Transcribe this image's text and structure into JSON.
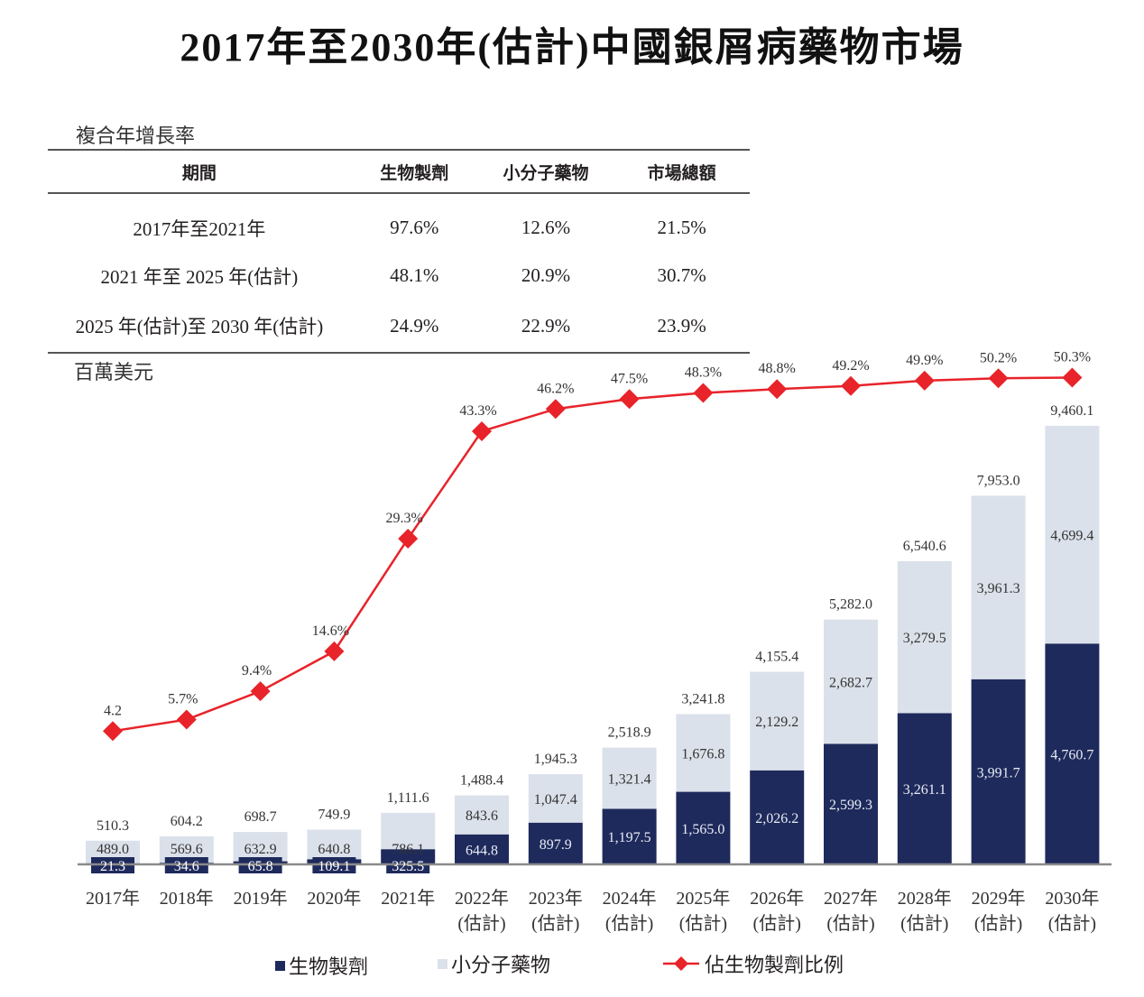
{
  "title": "2017年至2030年(估計)中國銀屑病藥物市場",
  "cagr_table": {
    "caption": "複合年增長率",
    "headers": [
      "期間",
      "生物製劑",
      "小分子藥物",
      "市場總額"
    ],
    "rows": [
      [
        "2017年至2021年",
        "97.6%",
        "12.6%",
        "21.5%"
      ],
      [
        "2021 年至 2025 年(估計)",
        "48.1%",
        "20.9%",
        "30.7%"
      ],
      [
        "2025 年(估計)至 2030 年(估計)",
        "24.9%",
        "22.9%",
        "23.9%"
      ]
    ]
  },
  "colors": {
    "biologics": "#1f2a5c",
    "small_molecule": "#dbe1ea",
    "share_line": "#e8232a",
    "axis": "#8a8a8a"
  },
  "chart_data": {
    "type": "bar",
    "stacked": true,
    "title": "2017年至2030年(估計)中國銀屑病藥物市場",
    "ylabel": "百萬美元",
    "xlabel": "",
    "categories": [
      [
        "2017年",
        ""
      ],
      [
        "2018年",
        ""
      ],
      [
        "2019年",
        ""
      ],
      [
        "2020年",
        ""
      ],
      [
        "2021年",
        ""
      ],
      [
        "2022年",
        "(估計)"
      ],
      [
        "2023年",
        "(估計)"
      ],
      [
        "2024年",
        "(估計)"
      ],
      [
        "2025年",
        "(估計)"
      ],
      [
        "2026年",
        "(估計)"
      ],
      [
        "2027年",
        "(估計)"
      ],
      [
        "2028年",
        "(估計)"
      ],
      [
        "2029年",
        "(估計)"
      ],
      [
        "2030年",
        "(估計)"
      ]
    ],
    "series": [
      {
        "name": "生物製劑",
        "type": "bar",
        "values": [
          21.3,
          34.6,
          65.8,
          109.1,
          325.5,
          644.8,
          897.9,
          1197.5,
          1565.0,
          2026.2,
          2599.3,
          3261.1,
          3991.7,
          4760.7
        ],
        "labels": [
          "21.3",
          "34.6",
          "65.8",
          "109.1",
          "325.5",
          "644.8",
          "897.9",
          "1,197.5",
          "1,565.0",
          "2,026.2",
          "2,599.3",
          "3,261.1",
          "3,991.7",
          "4,760.7"
        ]
      },
      {
        "name": "小分子藥物",
        "type": "bar",
        "values": [
          489.0,
          569.6,
          632.9,
          640.8,
          786.1,
          843.6,
          1047.4,
          1321.4,
          1676.8,
          2129.2,
          2682.7,
          3279.5,
          3961.3,
          4699.4
        ],
        "labels": [
          "489.0",
          "569.6",
          "632.9",
          "640.8",
          "786.1",
          "843.6",
          "1,047.4",
          "1,321.4",
          "1,676.8",
          "2,129.2",
          "2,682.7",
          "3,279.5",
          "3,961.3",
          "4,699.4"
        ]
      },
      {
        "name": "佔生物製劑比例",
        "type": "line",
        "unit": "%",
        "values": [
          4.2,
          5.7,
          9.4,
          14.6,
          29.3,
          43.3,
          46.2,
          47.5,
          48.3,
          48.8,
          49.2,
          49.9,
          50.2,
          50.3
        ],
        "labels": [
          "4.2",
          "5.7%",
          "9.4%",
          "14.6%",
          "29.3%",
          "43.3%",
          "46.2%",
          "47.5%",
          "48.3%",
          "48.8%",
          "49.2%",
          "49.9%",
          "50.2%",
          "50.3%"
        ]
      }
    ],
    "totals": [
      510.3,
      604.2,
      698.7,
      749.9,
      1111.6,
      1488.4,
      1945.3,
      2518.9,
      3241.8,
      4155.4,
      5282.0,
      6540.6,
      7953.0,
      9460.1
    ],
    "total_labels": [
      "510.3",
      "604.2",
      "698.7",
      "749.9",
      "1,111.6",
      "1,488.4",
      "1,945.3",
      "2,518.9",
      "3,241.8",
      "4,155.4",
      "5,282.0",
      "6,540.6",
      "7,953.0",
      "9,460.1"
    ],
    "ylim": [
      0,
      9500
    ],
    "line_ylim": [
      0,
      55
    ],
    "grid": false,
    "legend": {
      "position": "bottom",
      "entries": [
        "生物製劑",
        "小分子藥物",
        "佔生物製劑比例"
      ]
    }
  }
}
